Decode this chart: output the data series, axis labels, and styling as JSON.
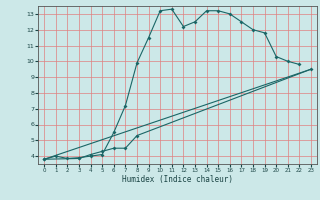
{
  "xlabel": "Humidex (Indice chaleur)",
  "bg_color": "#cce8e8",
  "grid_color": "#e08080",
  "line_color": "#1a6666",
  "xlim": [
    -0.5,
    23.5
  ],
  "ylim": [
    3.5,
    13.5
  ],
  "xticks": [
    0,
    1,
    2,
    3,
    4,
    5,
    6,
    7,
    8,
    9,
    10,
    11,
    12,
    13,
    14,
    15,
    16,
    17,
    18,
    19,
    20,
    21,
    22,
    23
  ],
  "yticks": [
    4,
    5,
    6,
    7,
    8,
    9,
    10,
    11,
    12,
    13
  ],
  "line1_x": [
    0,
    1,
    2,
    3,
    4,
    5,
    6,
    7,
    8,
    9,
    10,
    11,
    12,
    13,
    14,
    15,
    16,
    17,
    18,
    19,
    20,
    21,
    22
  ],
  "line1_y": [
    3.8,
    4.0,
    3.85,
    3.9,
    4.0,
    4.1,
    5.5,
    7.2,
    9.9,
    11.5,
    13.2,
    13.3,
    12.2,
    12.5,
    13.2,
    13.2,
    13.0,
    12.5,
    12.0,
    11.8,
    10.3,
    10.0,
    9.8
  ],
  "line2_x": [
    0,
    3,
    4,
    5,
    6,
    7,
    8,
    23
  ],
  "line2_y": [
    3.8,
    3.85,
    4.1,
    4.3,
    4.5,
    4.5,
    5.3,
    9.5
  ],
  "line3_x": [
    0,
    23
  ],
  "line3_y": [
    3.8,
    9.5
  ]
}
